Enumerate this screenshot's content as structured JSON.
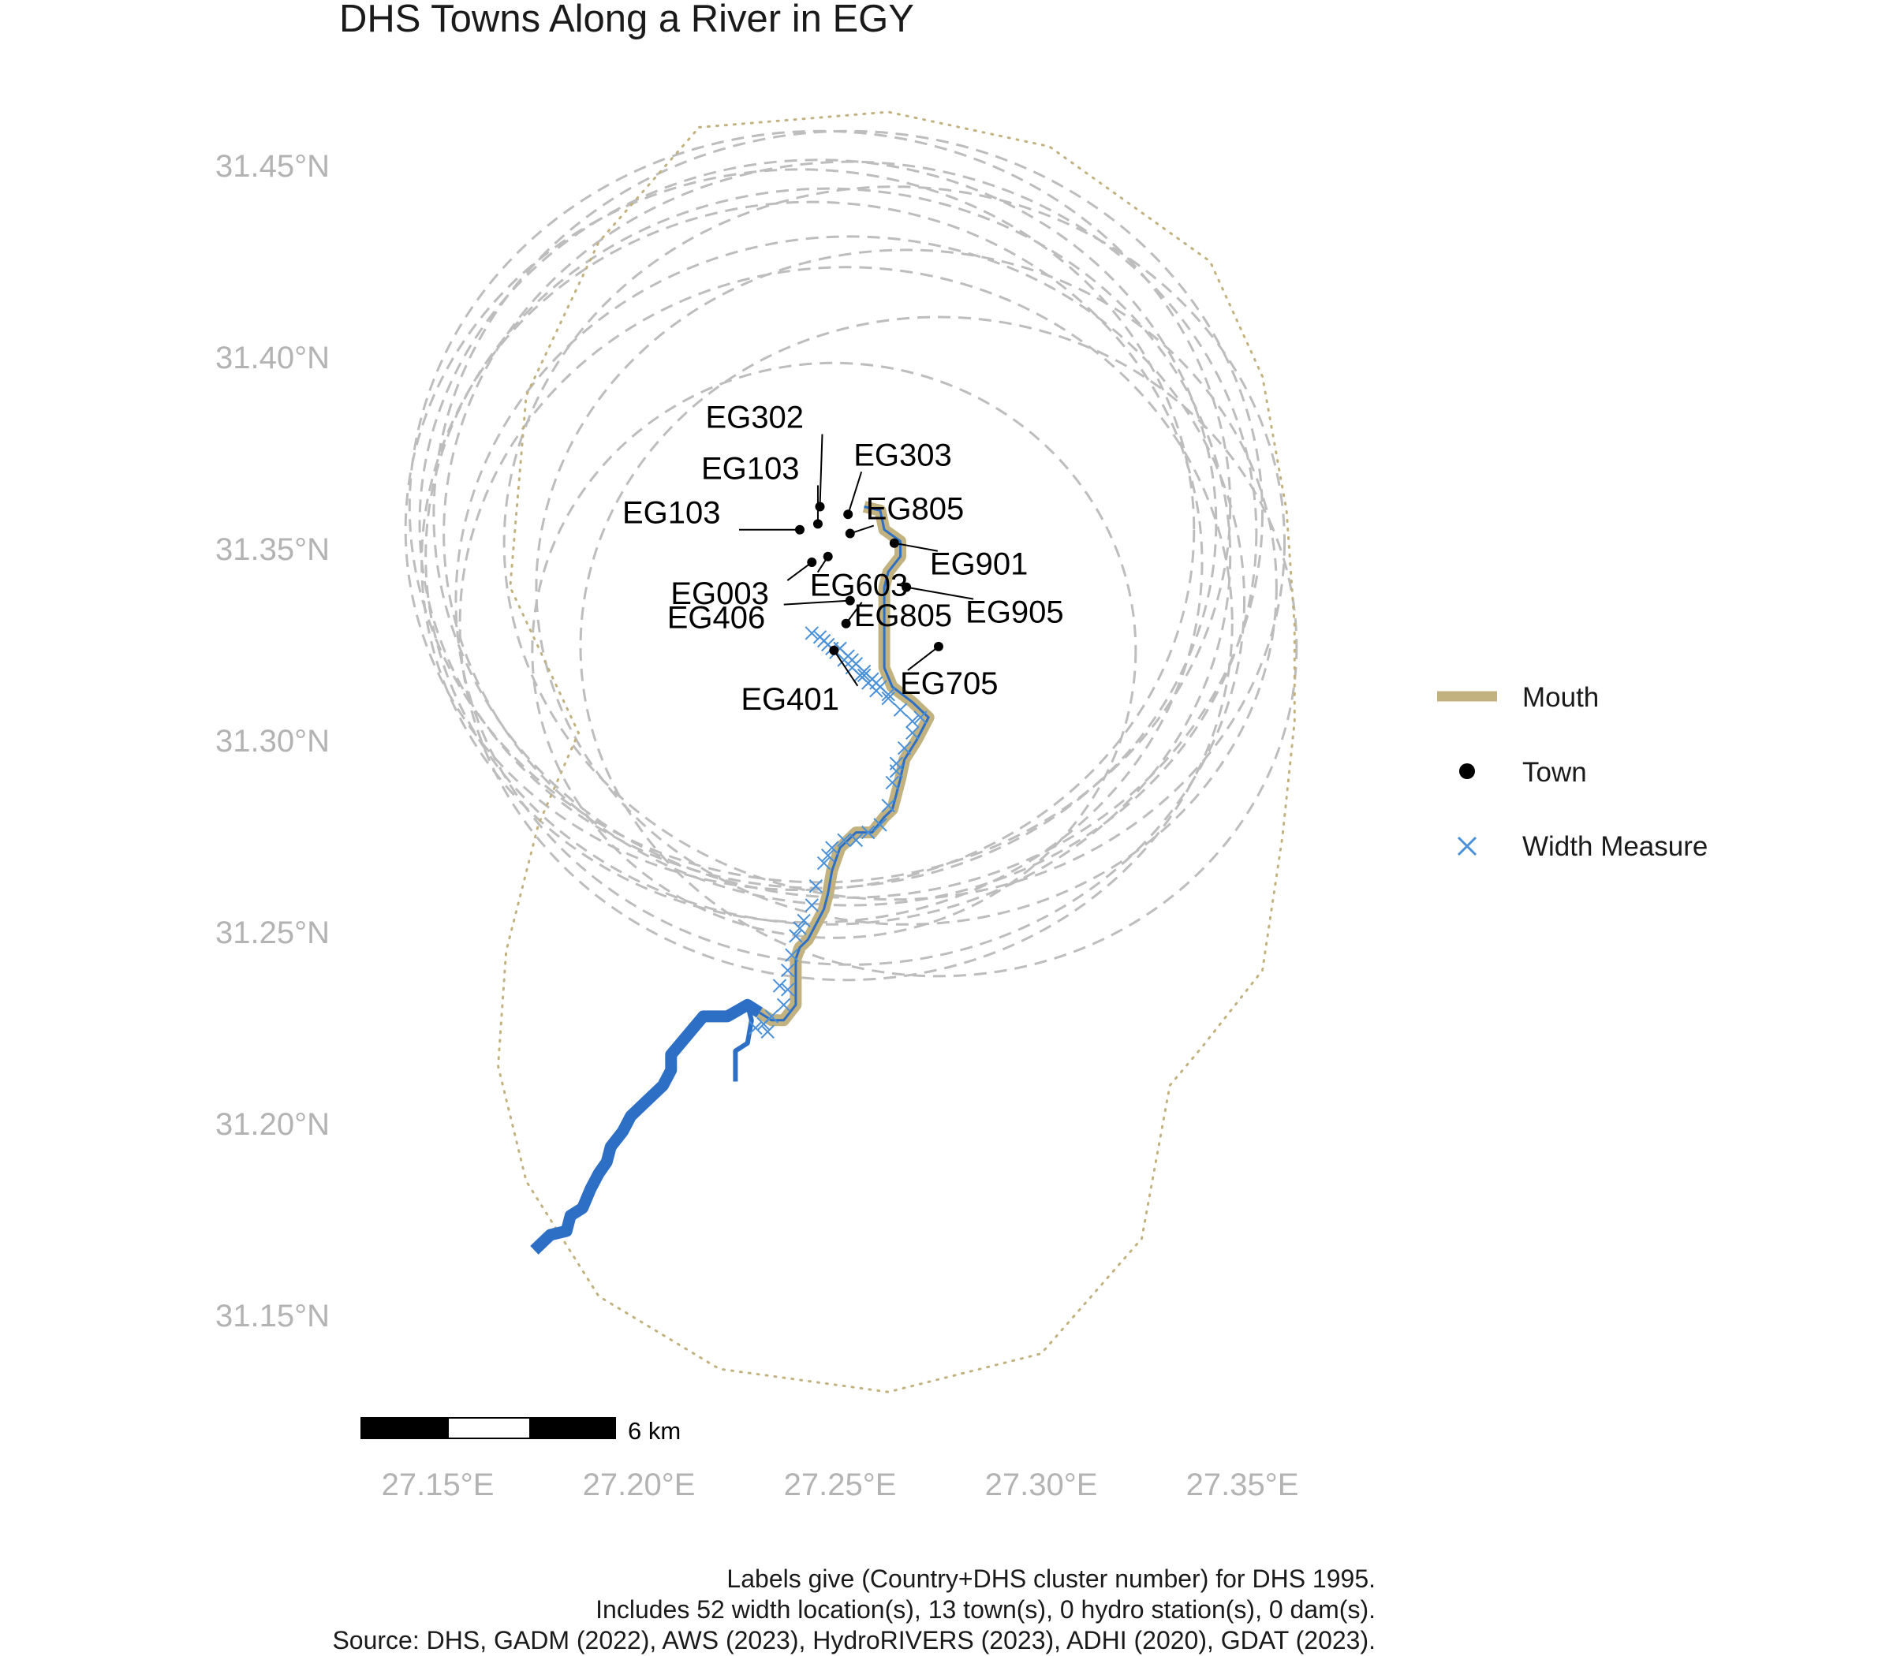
{
  "title": "DHS Towns Along a River in EGY",
  "axes": {
    "x_ticks": [
      "27.15°E",
      "27.20°E",
      "27.25°E",
      "27.30°E",
      "27.35°E"
    ],
    "y_ticks": [
      "31.45°N",
      "31.40°N",
      "31.35°N",
      "31.30°N",
      "31.25°N",
      "31.20°N",
      "31.15°N"
    ]
  },
  "legend": {
    "items": [
      {
        "label": "Mouth",
        "color": "#c2b280",
        "symbol": "line"
      },
      {
        "label": "Town",
        "color": "#000000",
        "symbol": "dot"
      },
      {
        "label": "Width Measure",
        "color": "#4a90d9",
        "symbol": "cross"
      }
    ]
  },
  "scale_bar": {
    "label": "6 km"
  },
  "caption": [
    "Labels give (Country+DHS cluster number) for DHS 1995.",
    "Includes 52 width location(s), 13 town(s), 0 hydro station(s), 0 dam(s).",
    "Source: DHS, GADM (2022), AWS (2023), HydroRIVERS (2023), ADHI (2020), GDAT (2023)."
  ],
  "colors": {
    "river": "#2d6fc4",
    "mouth": "#c2b280",
    "width_measure": "#4a90d9",
    "buffer": "#bdbdbd",
    "boundary": "#c2b280",
    "town": "#000000"
  },
  "chart_data": {
    "type": "map",
    "title": "DHS Towns Along a River in EGY",
    "xlabel": "",
    "ylabel": "",
    "xlim": [
      27.13,
      27.37
    ],
    "ylim": [
      31.13,
      31.465
    ],
    "towns": [
      {
        "label": "EG302",
        "lon": 27.245,
        "lat": 31.361
      },
      {
        "label": "EG103",
        "lon": 27.2445,
        "lat": 31.3565
      },
      {
        "label": "EG103",
        "lon": 27.24,
        "lat": 31.355
      },
      {
        "label": "EG303",
        "lon": 27.252,
        "lat": 31.359
      },
      {
        "label": "EG805",
        "lon": 27.2525,
        "lat": 31.354
      },
      {
        "label": "EG901",
        "lon": 27.2635,
        "lat": 31.3515
      },
      {
        "label": "EG603",
        "lon": 27.247,
        "lat": 31.348
      },
      {
        "label": "EG003",
        "lon": 27.243,
        "lat": 31.3465
      },
      {
        "label": "EG905",
        "lon": 27.2665,
        "lat": 31.34
      },
      {
        "label": "EG406",
        "lon": 27.2525,
        "lat": 31.3365
      },
      {
        "label": "EG805",
        "lon": 27.2515,
        "lat": 31.3305
      },
      {
        "label": "EG705",
        "lon": 27.2745,
        "lat": 31.3245
      },
      {
        "label": "EG401",
        "lon": 27.2485,
        "lat": 31.3235
      }
    ],
    "river": [
      [
        27.174,
        31.167
      ],
      [
        27.178,
        31.171
      ],
      [
        27.182,
        31.172
      ],
      [
        27.183,
        31.176
      ],
      [
        27.186,
        31.178
      ],
      [
        27.188,
        31.183
      ],
      [
        27.19,
        31.187
      ],
      [
        27.192,
        31.19
      ],
      [
        27.193,
        31.194
      ],
      [
        27.196,
        31.198
      ],
      [
        27.198,
        31.202
      ],
      [
        27.202,
        31.206
      ],
      [
        27.206,
        31.21
      ],
      [
        27.208,
        31.214
      ],
      [
        27.208,
        31.218
      ],
      [
        27.212,
        31.223
      ],
      [
        27.216,
        31.228
      ],
      [
        27.222,
        31.228
      ],
      [
        27.227,
        31.231
      ],
      [
        27.23,
        31.229
      ]
    ],
    "river_branch": [
      [
        27.227,
        31.231
      ],
      [
        27.228,
        31.227
      ],
      [
        27.227,
        31.221
      ],
      [
        27.224,
        31.219
      ],
      [
        27.224,
        31.211
      ]
    ],
    "mouth": [
      [
        27.23,
        31.229
      ],
      [
        27.233,
        31.227
      ],
      [
        27.236,
        31.227
      ],
      [
        27.239,
        31.231
      ],
      [
        27.239,
        31.235
      ],
      [
        27.239,
        31.243
      ],
      [
        27.24,
        31.246
      ],
      [
        27.242,
        31.248
      ],
      [
        27.244,
        31.252
      ],
      [
        27.246,
        31.256
      ],
      [
        27.247,
        31.26
      ],
      [
        27.248,
        31.266
      ],
      [
        27.25,
        31.272
      ],
      [
        27.254,
        31.276
      ],
      [
        27.258,
        31.276
      ],
      [
        27.261,
        31.28
      ],
      [
        27.263,
        31.282
      ],
      [
        27.265,
        31.29
      ],
      [
        27.266,
        31.295
      ],
      [
        27.269,
        31.3
      ],
      [
        27.272,
        31.306
      ],
      [
        27.268,
        31.31
      ],
      [
        27.263,
        31.314
      ],
      [
        27.261,
        31.319
      ],
      [
        27.261,
        31.325
      ],
      [
        27.261,
        31.332
      ],
      [
        27.261,
        31.34
      ],
      [
        27.262,
        31.344
      ],
      [
        27.265,
        31.348
      ],
      [
        27.265,
        31.352
      ],
      [
        27.261,
        31.355
      ],
      [
        27.26,
        31.36
      ],
      [
        27.256,
        31.361
      ]
    ],
    "width_measures": [
      [
        27.229,
        31.225
      ],
      [
        27.231,
        31.226
      ],
      [
        27.233,
        31.228
      ],
      [
        27.236,
        31.231
      ],
      [
        27.237,
        31.235
      ],
      [
        27.237,
        31.24
      ],
      [
        27.238,
        31.244
      ],
      [
        27.239,
        31.249
      ],
      [
        27.241,
        31.253
      ],
      [
        27.243,
        31.257
      ],
      [
        27.244,
        31.262
      ],
      [
        27.246,
        31.268
      ],
      [
        27.248,
        31.272
      ],
      [
        27.251,
        31.274
      ],
      [
        27.254,
        31.274
      ],
      [
        27.257,
        31.276
      ],
      [
        27.26,
        31.278
      ],
      [
        27.262,
        31.283
      ],
      [
        27.263,
        31.289
      ],
      [
        27.264,
        31.294
      ],
      [
        27.266,
        31.298
      ],
      [
        27.268,
        31.302
      ],
      [
        27.27,
        31.306
      ],
      [
        27.268,
        31.305
      ],
      [
        27.265,
        31.308
      ],
      [
        27.262,
        31.311
      ],
      [
        27.259,
        31.313
      ],
      [
        27.257,
        31.315
      ],
      [
        27.255,
        31.317
      ],
      [
        27.253,
        31.319
      ],
      [
        27.251,
        31.321
      ],
      [
        27.249,
        31.323
      ],
      [
        27.247,
        31.325
      ],
      [
        27.245,
        31.327
      ],
      [
        27.25,
        31.324
      ],
      [
        27.252,
        31.322
      ],
      [
        27.254,
        31.32
      ],
      [
        27.256,
        31.318
      ],
      [
        27.258,
        31.316
      ],
      [
        27.26,
        31.314
      ],
      [
        27.262,
        31.312
      ],
      [
        27.246,
        31.326
      ],
      [
        27.248,
        31.324
      ],
      [
        27.243,
        31.328
      ],
      [
        27.253,
        31.321
      ],
      [
        27.259,
        31.315
      ],
      [
        27.256,
        31.317
      ],
      [
        27.232,
        31.224
      ],
      [
        27.235,
        31.236
      ],
      [
        27.24,
        31.251
      ],
      [
        27.247,
        31.27
      ],
      [
        27.264,
        31.292
      ]
    ],
    "buffers": [
      {
        "lon": 27.245,
        "lat": 31.361,
        "rx": 0.102,
        "ry": 0.098
      },
      {
        "lon": 27.2445,
        "lat": 31.3565,
        "rx": 0.099,
        "ry": 0.095
      },
      {
        "lon": 27.24,
        "lat": 31.355,
        "rx": 0.098,
        "ry": 0.094
      },
      {
        "lon": 27.252,
        "lat": 31.359,
        "rx": 0.103,
        "ry": 0.1
      },
      {
        "lon": 27.2525,
        "lat": 31.354,
        "rx": 0.101,
        "ry": 0.097
      },
      {
        "lon": 27.2635,
        "lat": 31.3515,
        "rx": 0.097,
        "ry": 0.093
      },
      {
        "lon": 27.247,
        "lat": 31.348,
        "rx": 0.1,
        "ry": 0.096
      },
      {
        "lon": 27.243,
        "lat": 31.3465,
        "rx": 0.097,
        "ry": 0.094
      },
      {
        "lon": 27.2665,
        "lat": 31.34,
        "rx": 0.092,
        "ry": 0.088
      },
      {
        "lon": 27.2525,
        "lat": 31.3365,
        "rx": 0.098,
        "ry": 0.095
      },
      {
        "lon": 27.2515,
        "lat": 31.3305,
        "rx": 0.096,
        "ry": 0.093
      },
      {
        "lon": 27.2745,
        "lat": 31.3245,
        "rx": 0.089,
        "ry": 0.086
      },
      {
        "lon": 27.2485,
        "lat": 31.3235,
        "rx": 0.075,
        "ry": 0.075
      }
    ],
    "boundary": [
      [
        27.215,
        31.46
      ],
      [
        27.262,
        31.464
      ],
      [
        27.302,
        31.455
      ],
      [
        27.342,
        31.425
      ],
      [
        27.355,
        31.395
      ],
      [
        27.361,
        31.36
      ],
      [
        27.363,
        31.33
      ],
      [
        27.363,
        31.305
      ],
      [
        27.36,
        31.275
      ],
      [
        27.355,
        31.24
      ],
      [
        27.34,
        31.22
      ],
      [
        27.332,
        31.21
      ],
      [
        27.325,
        31.17
      ],
      [
        27.3,
        31.14
      ],
      [
        27.262,
        31.13
      ],
      [
        27.22,
        31.136
      ],
      [
        27.19,
        31.155
      ],
      [
        27.172,
        31.185
      ],
      [
        27.165,
        31.215
      ],
      [
        27.167,
        31.245
      ],
      [
        27.175,
        31.278
      ],
      [
        27.185,
        31.302
      ],
      [
        27.168,
        31.34
      ],
      [
        27.172,
        31.39
      ],
      [
        27.19,
        31.43
      ],
      [
        27.215,
        31.46
      ]
    ]
  }
}
